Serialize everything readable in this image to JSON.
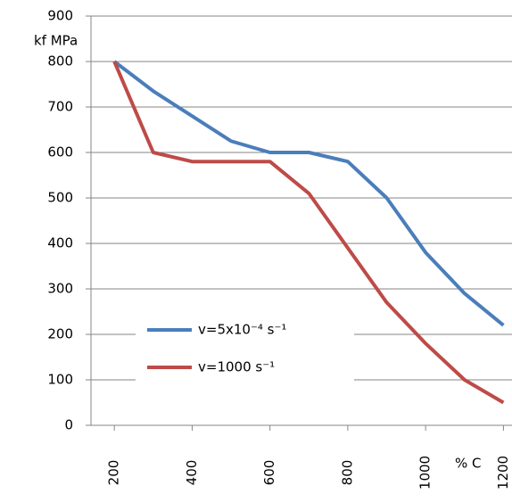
{
  "chart_data": {
    "type": "line",
    "y_label": "kf  MPa",
    "x_label": "% C",
    "x": [
      200,
      300,
      400,
      500,
      600,
      700,
      800,
      900,
      1000,
      1100,
      1200
    ],
    "series": [
      {
        "name": "v=5x10⁻⁴ s⁻¹",
        "color": "#4a7ebb",
        "values": [
          800,
          735,
          680,
          625,
          600,
          600,
          580,
          500,
          380,
          290,
          220
        ]
      },
      {
        "name": "v=1000 s⁻¹",
        "color": "#be4b48",
        "values": [
          800,
          600,
          580,
          580,
          580,
          510,
          390,
          270,
          180,
          100,
          50
        ]
      }
    ],
    "xlim": [
      140,
      1222
    ],
    "xticks": [
      200,
      400,
      600,
      800,
      1000,
      1200
    ],
    "ylim": [
      0,
      900
    ],
    "yticks": [
      0,
      100,
      200,
      300,
      400,
      500,
      600,
      700,
      800,
      900
    ],
    "grid": true
  }
}
